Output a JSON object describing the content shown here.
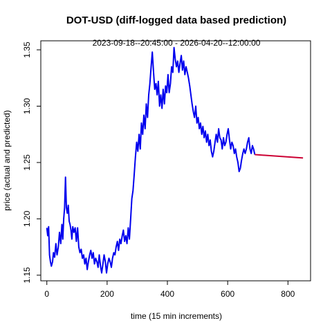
{
  "chart_data": {
    "type": "line",
    "title": "DOT-USD (diff-logged data based prediction)",
    "subtitle": "2023-09-18--20:45:00  -  2026-04-20--12:00:00",
    "xlabel": "time (15 min increments)",
    "ylabel": "price (actual and predicted)",
    "xlim": [
      -20,
      875
    ],
    "ylim": [
      1.145,
      1.358
    ],
    "x_ticks": [
      0,
      200,
      400,
      600,
      800
    ],
    "y_ticks": [
      1.15,
      1.2,
      1.25,
      1.3,
      1.35
    ],
    "x_tick_labels": [
      "0",
      "200",
      "400",
      "600",
      "800"
    ],
    "y_tick_labels": [
      "1.15",
      "1.20",
      "1.25",
      "1.30",
      "1.35"
    ],
    "grid": false,
    "series": [
      {
        "color": "#0000ee",
        "points": [
          [
            0,
            1.192
          ],
          [
            3,
            1.185
          ],
          [
            6,
            1.193
          ],
          [
            9,
            1.168
          ],
          [
            12,
            1.162
          ],
          [
            15,
            1.158
          ],
          [
            19,
            1.162
          ],
          [
            22,
            1.17
          ],
          [
            26,
            1.166
          ],
          [
            30,
            1.178
          ],
          [
            34,
            1.168
          ],
          [
            38,
            1.175
          ],
          [
            42,
            1.188
          ],
          [
            46,
            1.178
          ],
          [
            50,
            1.195
          ],
          [
            53,
            1.182
          ],
          [
            56,
            1.2
          ],
          [
            59,
            1.21
          ],
          [
            62,
            1.237
          ],
          [
            65,
            1.21
          ],
          [
            68,
            1.205
          ],
          [
            71,
            1.212
          ],
          [
            74,
            1.198
          ],
          [
            77,
            1.195
          ],
          [
            80,
            1.19
          ],
          [
            83,
            1.182
          ],
          [
            86,
            1.193
          ],
          [
            90,
            1.188
          ],
          [
            94,
            1.192
          ],
          [
            98,
            1.18
          ],
          [
            102,
            1.192
          ],
          [
            106,
            1.175
          ],
          [
            110,
            1.17
          ],
          [
            114,
            1.173
          ],
          [
            118,
            1.165
          ],
          [
            122,
            1.168
          ],
          [
            126,
            1.16
          ],
          [
            130,
            1.165
          ],
          [
            134,
            1.155
          ],
          [
            138,
            1.162
          ],
          [
            142,
            1.168
          ],
          [
            146,
            1.172
          ],
          [
            150,
            1.165
          ],
          [
            154,
            1.17
          ],
          [
            158,
            1.16
          ],
          [
            162,
            1.165
          ],
          [
            166,
            1.162
          ],
          [
            170,
            1.157
          ],
          [
            174,
            1.168
          ],
          [
            178,
            1.158
          ],
          [
            182,
            1.152
          ],
          [
            186,
            1.16
          ],
          [
            190,
            1.168
          ],
          [
            194,
            1.162
          ],
          [
            198,
            1.152
          ],
          [
            202,
            1.16
          ],
          [
            206,
            1.165
          ],
          [
            210,
            1.162
          ],
          [
            214,
            1.157
          ],
          [
            218,
            1.165
          ],
          [
            222,
            1.17
          ],
          [
            226,
            1.168
          ],
          [
            230,
            1.175
          ],
          [
            234,
            1.18
          ],
          [
            238,
            1.172
          ],
          [
            242,
            1.182
          ],
          [
            246,
            1.178
          ],
          [
            250,
            1.185
          ],
          [
            254,
            1.19
          ],
          [
            258,
            1.18
          ],
          [
            262,
            1.185
          ],
          [
            266,
            1.178
          ],
          [
            270,
            1.192
          ],
          [
            274,
            1.182
          ],
          [
            278,
            1.2
          ],
          [
            282,
            1.218
          ],
          [
            286,
            1.225
          ],
          [
            290,
            1.24
          ],
          [
            294,
            1.255
          ],
          [
            298,
            1.268
          ],
          [
            302,
            1.26
          ],
          [
            306,
            1.275
          ],
          [
            310,
            1.262
          ],
          [
            314,
            1.285
          ],
          [
            318,
            1.275
          ],
          [
            322,
            1.292
          ],
          [
            326,
            1.28
          ],
          [
            330,
            1.302
          ],
          [
            334,
            1.29
          ],
          [
            338,
            1.31
          ],
          [
            342,
            1.32
          ],
          [
            346,
            1.335
          ],
          [
            350,
            1.348
          ],
          [
            354,
            1.33
          ],
          [
            358,
            1.315
          ],
          [
            362,
            1.32
          ],
          [
            366,
            1.31
          ],
          [
            370,
            1.322
          ],
          [
            374,
            1.3
          ],
          [
            378,
            1.31
          ],
          [
            382,
            1.298
          ],
          [
            386,
            1.315
          ],
          [
            390,
            1.302
          ],
          [
            394,
            1.318
          ],
          [
            398,
            1.312
          ],
          [
            402,
            1.328
          ],
          [
            406,
            1.312
          ],
          [
            410,
            1.32
          ],
          [
            414,
            1.335
          ],
          [
            418,
            1.33
          ],
          [
            422,
            1.352
          ],
          [
            426,
            1.342
          ],
          [
            430,
            1.335
          ],
          [
            434,
            1.34
          ],
          [
            438,
            1.33
          ],
          [
            442,
            1.338
          ],
          [
            446,
            1.345
          ],
          [
            450,
            1.332
          ],
          [
            454,
            1.34
          ],
          [
            458,
            1.328
          ],
          [
            462,
            1.335
          ],
          [
            466,
            1.33
          ],
          [
            470,
            1.325
          ],
          [
            474,
            1.318
          ],
          [
            478,
            1.31
          ],
          [
            482,
            1.302
          ],
          [
            486,
            1.295
          ],
          [
            490,
            1.29
          ],
          [
            494,
            1.3
          ],
          [
            498,
            1.285
          ],
          [
            502,
            1.29
          ],
          [
            506,
            1.28
          ],
          [
            510,
            1.285
          ],
          [
            514,
            1.275
          ],
          [
            518,
            1.282
          ],
          [
            522,
            1.272
          ],
          [
            526,
            1.278
          ],
          [
            530,
            1.268
          ],
          [
            534,
            1.275
          ],
          [
            538,
            1.265
          ],
          [
            542,
            1.27
          ],
          [
            546,
            1.26
          ],
          [
            550,
            1.255
          ],
          [
            554,
            1.26
          ],
          [
            558,
            1.268
          ],
          [
            562,
            1.275
          ],
          [
            566,
            1.268
          ],
          [
            570,
            1.28
          ],
          [
            574,
            1.272
          ],
          [
            578,
            1.27
          ],
          [
            582,
            1.262
          ],
          [
            586,
            1.272
          ],
          [
            590,
            1.265
          ],
          [
            594,
            1.268
          ],
          [
            598,
            1.275
          ],
          [
            602,
            1.28
          ],
          [
            606,
            1.27
          ],
          [
            610,
            1.262
          ],
          [
            614,
            1.268
          ],
          [
            618,
            1.265
          ],
          [
            622,
            1.258
          ],
          [
            626,
            1.262
          ],
          [
            630,
            1.255
          ],
          [
            634,
            1.25
          ],
          [
            638,
            1.242
          ],
          [
            642,
            1.245
          ],
          [
            646,
            1.252
          ],
          [
            650,
            1.258
          ],
          [
            654,
            1.262
          ],
          [
            658,
            1.258
          ],
          [
            662,
            1.262
          ],
          [
            666,
            1.268
          ],
          [
            670,
            1.272
          ],
          [
            674,
            1.262
          ],
          [
            678,
            1.258
          ],
          [
            682,
            1.265
          ],
          [
            686,
            1.262
          ],
          [
            690,
            1.257
          ]
        ]
      },
      {
        "color": "#cc0033",
        "points": [
          [
            690,
            1.257
          ],
          [
            850,
            1.254
          ]
        ]
      }
    ]
  }
}
